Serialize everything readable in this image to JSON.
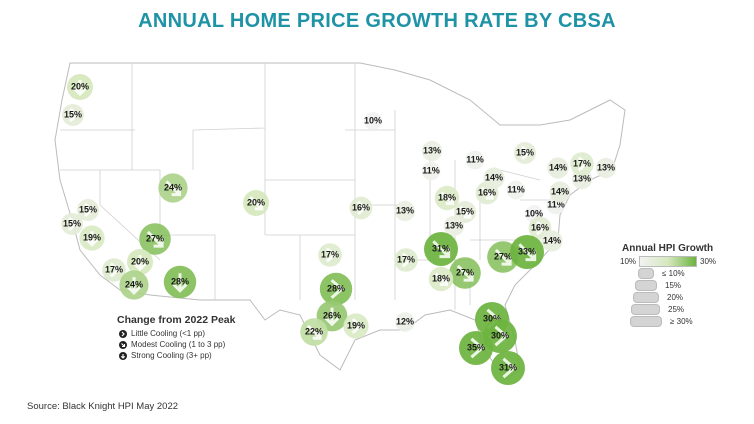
{
  "title": "ANNUAL HOME PRICE GROWTH RATE BY CBSA",
  "source": "Source: Black Knight HPI May 2022",
  "colors": {
    "title": "#1e93a6",
    "low": "#f2f2f2",
    "mid": "#d6e8be",
    "high": "#6db33f",
    "strong": "#5a9e2c"
  },
  "cooling_legend": {
    "title": "Change from 2022 Peak",
    "items": [
      {
        "label": "Little Cooling (<1 pp)",
        "icon": "right-arrow-icon"
      },
      {
        "label": "Modest Cooling (1 to 3 pp)",
        "icon": "diagonal-arrow-icon"
      },
      {
        "label": "Strong Cooling (3+ pp)",
        "icon": "down-arrow-icon"
      }
    ]
  },
  "hpi_legend": {
    "title": "Annual HPI Growth",
    "min_label": "10%",
    "max_label": "30%",
    "sizes": [
      "≤ 10%",
      "15%",
      "20%",
      "25%",
      "≥ 30%"
    ]
  },
  "bubbles": [
    {
      "label": "20%",
      "value": 20,
      "cooling": "strong"
    },
    {
      "label": "15%",
      "value": 15,
      "cooling": "little"
    },
    {
      "label": "24%",
      "value": 24,
      "cooling": "modest"
    },
    {
      "label": "20%",
      "value": 20,
      "cooling": "modest"
    },
    {
      "label": "15%",
      "value": 15,
      "cooling": "little"
    },
    {
      "label": "15%",
      "value": 15,
      "cooling": "little"
    },
    {
      "label": "19%",
      "value": 19,
      "cooling": "strong"
    },
    {
      "label": "27%",
      "value": 27,
      "cooling": "modest"
    },
    {
      "label": "17%",
      "value": 17,
      "cooling": "little"
    },
    {
      "label": "20%",
      "value": 20,
      "cooling": "strong"
    },
    {
      "label": "24%",
      "value": 24,
      "cooling": "strong"
    },
    {
      "label": "28%",
      "value": 28,
      "cooling": "strong"
    },
    {
      "label": "10%",
      "value": 10,
      "cooling": "little"
    },
    {
      "label": "16%",
      "value": 16,
      "cooling": "little"
    },
    {
      "label": "17%",
      "value": 17,
      "cooling": "little"
    },
    {
      "label": "28%",
      "value": 28,
      "cooling": "little"
    },
    {
      "label": "26%",
      "value": 26,
      "cooling": "strong"
    },
    {
      "label": "22%",
      "value": 22,
      "cooling": "modest"
    },
    {
      "label": "19%",
      "value": 19,
      "cooling": "little"
    },
    {
      "label": "12%",
      "value": 12,
      "cooling": "little"
    },
    {
      "label": "13%",
      "value": 13,
      "cooling": "little"
    },
    {
      "label": "11%",
      "value": 11,
      "cooling": "little"
    },
    {
      "label": "11%",
      "value": 11,
      "cooling": "little"
    },
    {
      "label": "15%",
      "value": 15,
      "cooling": "little"
    },
    {
      "label": "13%",
      "value": 13,
      "cooling": "little"
    },
    {
      "label": "18%",
      "value": 18,
      "cooling": "modest"
    },
    {
      "label": "15%",
      "value": 15,
      "cooling": "modest"
    },
    {
      "label": "16%",
      "value": 16,
      "cooling": "modest"
    },
    {
      "label": "14%",
      "value": 14,
      "cooling": "little"
    },
    {
      "label": "11%",
      "value": 11,
      "cooling": "little"
    },
    {
      "label": "13%",
      "value": 13,
      "cooling": "modest"
    },
    {
      "label": "10%",
      "value": 10,
      "cooling": "little"
    },
    {
      "label": "11%",
      "value": 11,
      "cooling": "little"
    },
    {
      "label": "14%",
      "value": 14,
      "cooling": "little"
    },
    {
      "label": "13%",
      "value": 13,
      "cooling": "little"
    },
    {
      "label": "14%",
      "value": 14,
      "cooling": "little"
    },
    {
      "label": "17%",
      "value": 17,
      "cooling": "little"
    },
    {
      "label": "13%",
      "value": 13,
      "cooling": "little"
    },
    {
      "label": "16%",
      "value": 16,
      "cooling": "little"
    },
    {
      "label": "14%",
      "value": 14,
      "cooling": "little"
    },
    {
      "label": "31%",
      "value": 31,
      "cooling": "modest"
    },
    {
      "label": "17%",
      "value": 17,
      "cooling": "little"
    },
    {
      "label": "27%",
      "value": 27,
      "cooling": "modest"
    },
    {
      "label": "18%",
      "value": 18,
      "cooling": "modest"
    },
    {
      "label": "27%",
      "value": 27,
      "cooling": "modest"
    },
    {
      "label": "33%",
      "value": 33,
      "cooling": "modest"
    },
    {
      "label": "30%",
      "value": 30,
      "cooling": "little"
    },
    {
      "label": "30%",
      "value": 30,
      "cooling": "little"
    },
    {
      "label": "35%",
      "value": 35,
      "cooling": "little"
    },
    {
      "label": "31%",
      "value": 31,
      "cooling": "little"
    }
  ]
}
